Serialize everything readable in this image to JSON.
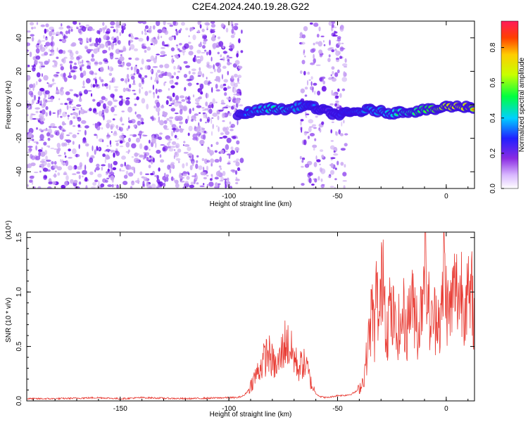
{
  "title": "C2E4.2024.240.19.28.G22",
  "colors": {
    "snr_line": "#e83a32",
    "speckle_light": "#c9a6f2",
    "speckle_mid": "#9a55f0",
    "speckle_dark": "#6a12e8"
  },
  "chart_data": [
    {
      "type": "heatmap",
      "title": "C2E4.2024.240.19.28.G22",
      "xlabel": "Height of straight line (km)",
      "ylabel": "Frequency (Hz)",
      "xlim": [
        -193,
        13
      ],
      "ylim": [
        -50,
        50
      ],
      "x_ticks": [
        "-150",
        "-100",
        "-50",
        "0"
      ],
      "y_ticks": [
        "-40",
        "-20",
        "0",
        "20",
        "40"
      ],
      "colorbar": {
        "label": "Normalized spectral amplitude",
        "range": [
          0,
          0.95
        ],
        "ticks": [
          "0.0",
          "0.2",
          "0.4",
          "0.6",
          "0.8"
        ],
        "colormap": "rainbow"
      },
      "noise_region_km": [
        -193,
        -94
      ],
      "noise_patches_km": [
        [
          -67,
          -56
        ],
        [
          -54,
          -46
        ]
      ],
      "signal_track": {
        "x": [
          -96,
          -90,
          -85,
          -80,
          -75,
          -70,
          -65,
          -60,
          -55,
          -50,
          -45,
          -40,
          -35,
          -30,
          -25,
          -20,
          -15,
          -10,
          -5,
          0,
          5,
          10,
          13
        ],
        "y": [
          -7,
          -4,
          -3,
          -2,
          -3,
          -2,
          0,
          -2,
          -4,
          -6,
          -5,
          -4,
          -3,
          -4,
          -5,
          -4,
          -4,
          -3,
          -3,
          -1,
          -1,
          -1,
          -2
        ],
        "amplitude": [
          0.3,
          0.45,
          0.5,
          0.55,
          0.55,
          0.5,
          0.45,
          0.35,
          0.3,
          0.35,
          0.4,
          0.45,
          0.5,
          0.5,
          0.55,
          0.6,
          0.65,
          0.7,
          0.8,
          0.9,
          0.95,
          0.9,
          0.85
        ]
      }
    },
    {
      "type": "line",
      "xlabel": "Height of straight line (km)",
      "ylabel": "SNR (10 * v/v)",
      "scale_note": "(x10⁴)",
      "xlim": [
        -193,
        13
      ],
      "ylim": [
        0,
        1.55
      ],
      "x_ticks": [
        "-150",
        "-100",
        "-50",
        "0"
      ],
      "y_ticks": [
        "0.0",
        "0.5",
        "1.0",
        "1.5"
      ],
      "series": [
        {
          "color": "#e83a32",
          "x": [
            -193,
            -180,
            -160,
            -150,
            -140,
            -120,
            -100,
            -96,
            -93,
            -91,
            -88,
            -85,
            -82,
            -80,
            -78,
            -76,
            -74,
            -72,
            -70,
            -68,
            -66,
            -64,
            -62,
            -60,
            -58,
            -55,
            -52,
            -50,
            -47,
            -44,
            -42,
            -40,
            -38,
            -36,
            -34,
            -33,
            -32,
            -31,
            -30,
            -29,
            -28,
            -27,
            -26,
            -25,
            -24,
            -23,
            -22,
            -21,
            -20,
            -19,
            -18,
            -17,
            -16,
            -15,
            -14,
            -13,
            -12,
            -11,
            -10,
            -9,
            -8,
            -7,
            -6,
            -5,
            -4,
            -3,
            -2,
            -1,
            0,
            1,
            2,
            3,
            4,
            5,
            6,
            7,
            8,
            9,
            10,
            11,
            12,
            13
          ],
          "y": [
            0.02,
            0.02,
            0.03,
            0.02,
            0.03,
            0.02,
            0.03,
            0.03,
            0.05,
            0.1,
            0.22,
            0.33,
            0.45,
            0.36,
            0.3,
            0.42,
            0.55,
            0.48,
            0.4,
            0.3,
            0.35,
            0.3,
            0.15,
            0.07,
            0.04,
            0.03,
            0.04,
            0.05,
            0.05,
            0.06,
            0.08,
            0.11,
            0.2,
            0.5,
            0.85,
            0.6,
            1.05,
            0.7,
            0.95,
            1.35,
            0.8,
            0.65,
            0.9,
            0.7,
            0.8,
            0.55,
            0.7,
            0.6,
            0.85,
            0.7,
            0.65,
            0.85,
            0.95,
            0.8,
            0.9,
            0.6,
            0.75,
            1.0,
            1.58,
            1.05,
            0.85,
            0.65,
            0.8,
            0.75,
            0.9,
            0.7,
            0.8,
            1.3,
            0.95,
            0.8,
            0.85,
            0.95,
            1.05,
            1.0,
            0.95,
            1.05,
            0.9,
            1.0,
            0.95,
            0.85,
            1.0,
            0.65
          ]
        }
      ]
    }
  ]
}
